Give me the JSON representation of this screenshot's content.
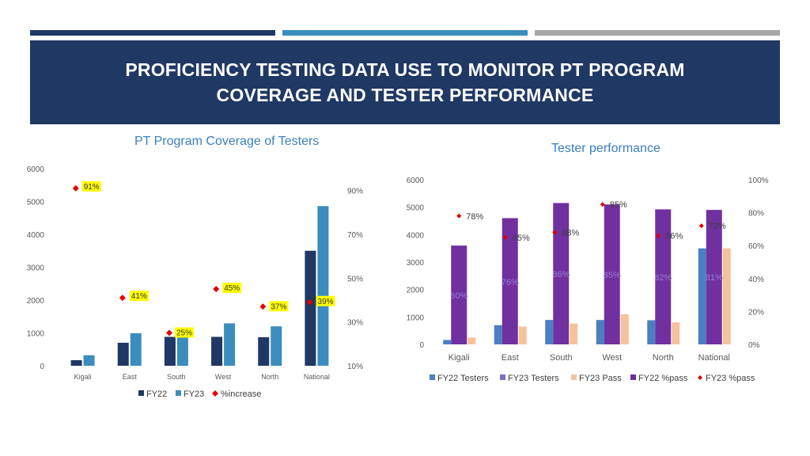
{
  "slide": {
    "title": "PROFICIENCY TESTING DATA USE TO MONITOR PT PROGRAM COVERAGE AND TESTER PERFORMANCE"
  },
  "colors": {
    "navy": "#1f3864",
    "steel_blue": "#3b8dbd",
    "gray": "#a6a6a6",
    "fy22_testers": "#4a7fc1",
    "fy23_testers": "#7f6cc6",
    "fy23_pass": "#f6c29a",
    "fy22_pass": "#7030a0",
    "marker_red": "#e00000",
    "label_yellow": "#ffff00"
  },
  "chart_data": [
    {
      "type": "bar",
      "title": "PT Program Coverage of Testers",
      "categories": [
        "Kigali",
        "East",
        "South",
        "West",
        "North",
        "National"
      ],
      "series": [
        {
          "name": "FY22",
          "axis": "left",
          "values": [
            170,
            700,
            880,
            880,
            870,
            3500
          ]
        },
        {
          "name": "FY23",
          "axis": "left",
          "values": [
            320,
            990,
            1100,
            1290,
            1200,
            4860
          ]
        },
        {
          "name": "%increase",
          "axis": "right",
          "kind": "marker",
          "values": [
            91,
            41,
            25,
            45,
            37,
            39
          ],
          "labels": [
            "91%",
            "41%",
            "25%",
            "45%",
            "37%",
            "39%"
          ]
        }
      ],
      "y_left": {
        "min": 0,
        "max": 6000,
        "ticks": [
          "0",
          "1000",
          "2000",
          "3000",
          "4000",
          "5000",
          "6000"
        ]
      },
      "y_right": {
        "min": 10,
        "max": 100,
        "ticks": [
          "10%",
          "30%",
          "50%",
          "70%",
          "90%"
        ]
      },
      "legend": {
        "position": "bottom",
        "entries": [
          "FY22",
          "FY23",
          "%increase"
        ]
      },
      "grid": false
    },
    {
      "type": "bar",
      "title": "Tester performance",
      "categories": [
        "Kigali",
        "East",
        "South",
        "West",
        "North",
        "National"
      ],
      "series": [
        {
          "name": "FY22 Testers",
          "axis": "left",
          "values": [
            160,
            700,
            890,
            890,
            880,
            3500
          ]
        },
        {
          "name": "FY22 %pass",
          "axis": "left",
          "values": [
            3600,
            4600,
            5150,
            5100,
            4920,
            4900
          ],
          "labels": [
            "60%",
            "76%",
            "86%",
            "85%",
            "82%",
            "81%"
          ]
        },
        {
          "name": "FY23 Pass",
          "axis": "left",
          "values": [
            250,
            650,
            760,
            1100,
            800,
            3500
          ]
        },
        {
          "name": "FY23 %pass",
          "axis": "right",
          "kind": "marker",
          "values": [
            78,
            65,
            68,
            85,
            66,
            72
          ],
          "labels": [
            "78%",
            "65%",
            "68%",
            "85%",
            "66%",
            "72%"
          ]
        }
      ],
      "y_left": {
        "min": 0,
        "max": 6000,
        "ticks": [
          "0",
          "1000",
          "2000",
          "3000",
          "4000",
          "5000",
          "6000"
        ]
      },
      "y_right": {
        "min": 0,
        "max": 100,
        "ticks": [
          "0%",
          "20%",
          "40%",
          "60%",
          "80%",
          "100%"
        ]
      },
      "legend": {
        "position": "bottom",
        "entries": [
          "FY22 Testers",
          "FY23 Testers",
          "FY23 Pass",
          "FY22 %pass",
          "FY23 %pass"
        ]
      },
      "grid": false
    }
  ]
}
